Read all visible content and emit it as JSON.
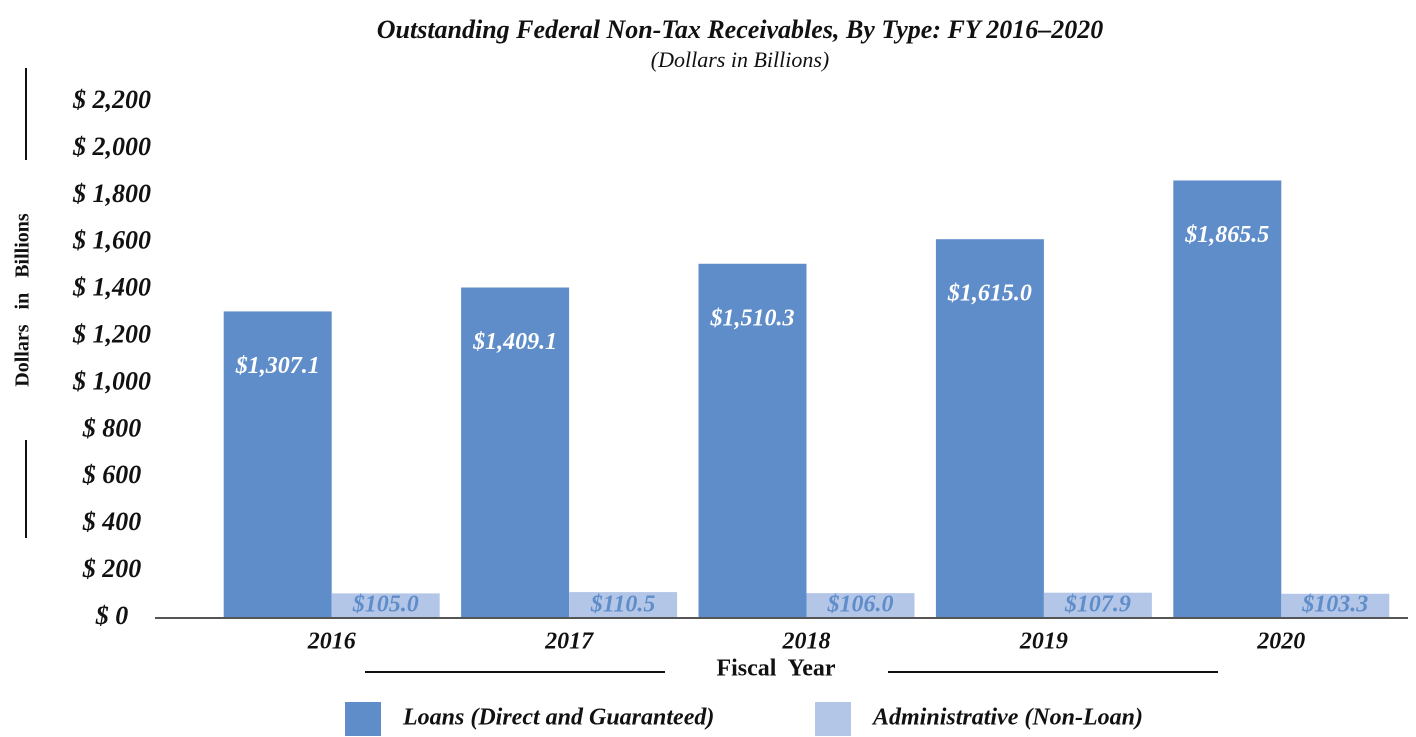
{
  "chart_data": {
    "type": "bar",
    "title": "Outstanding Federal Non-Tax Receivables, By Type: FY 2016–2020",
    "subtitle": "(Dollars in Billions)",
    "x_label": "Fiscal Year",
    "y_label": "Dollars in Billions",
    "categories": [
      "2016",
      "2017",
      "2018",
      "2019",
      "2020"
    ],
    "series": [
      {
        "name": "Loans (Direct and Guaranteed)",
        "color": "#5f8dc9",
        "values": [
          1307.1,
          1409.1,
          1510.3,
          1615.0,
          1865.5
        ],
        "value_labels": [
          "$1,307.1",
          "$1,409.1",
          "$1,510.3",
          "$1,615.0",
          "$1,865.5"
        ]
      },
      {
        "name": "Administrative (Non-Loan)",
        "color": "#b4c6e7",
        "values": [
          105.0,
          110.5,
          106.0,
          107.9,
          103.3
        ],
        "value_labels": [
          "$105.0",
          "$110.5",
          "$106.0",
          "$107.9",
          "$103.3"
        ]
      }
    ],
    "ylim": [
      0,
      2200
    ],
    "yticks": [
      {
        "value": 0,
        "label": "$ 0"
      },
      {
        "value": 200,
        "label": "$ 200"
      },
      {
        "value": 400,
        "label": "$ 400"
      },
      {
        "value": 600,
        "label": "$ 600"
      },
      {
        "value": 800,
        "label": "$ 800"
      },
      {
        "value": 1000,
        "label": "$ 1,000"
      },
      {
        "value": 1200,
        "label": "$ 1,200"
      },
      {
        "value": 1400,
        "label": "$ 1,400"
      },
      {
        "value": 1600,
        "label": "$ 1,600"
      },
      {
        "value": 1800,
        "label": "$ 1,800"
      },
      {
        "value": 2000,
        "label": "$ 2,000"
      },
      {
        "value": 2200,
        "label": "$ 2,200"
      }
    ],
    "grid": false,
    "legend": "bottom"
  }
}
